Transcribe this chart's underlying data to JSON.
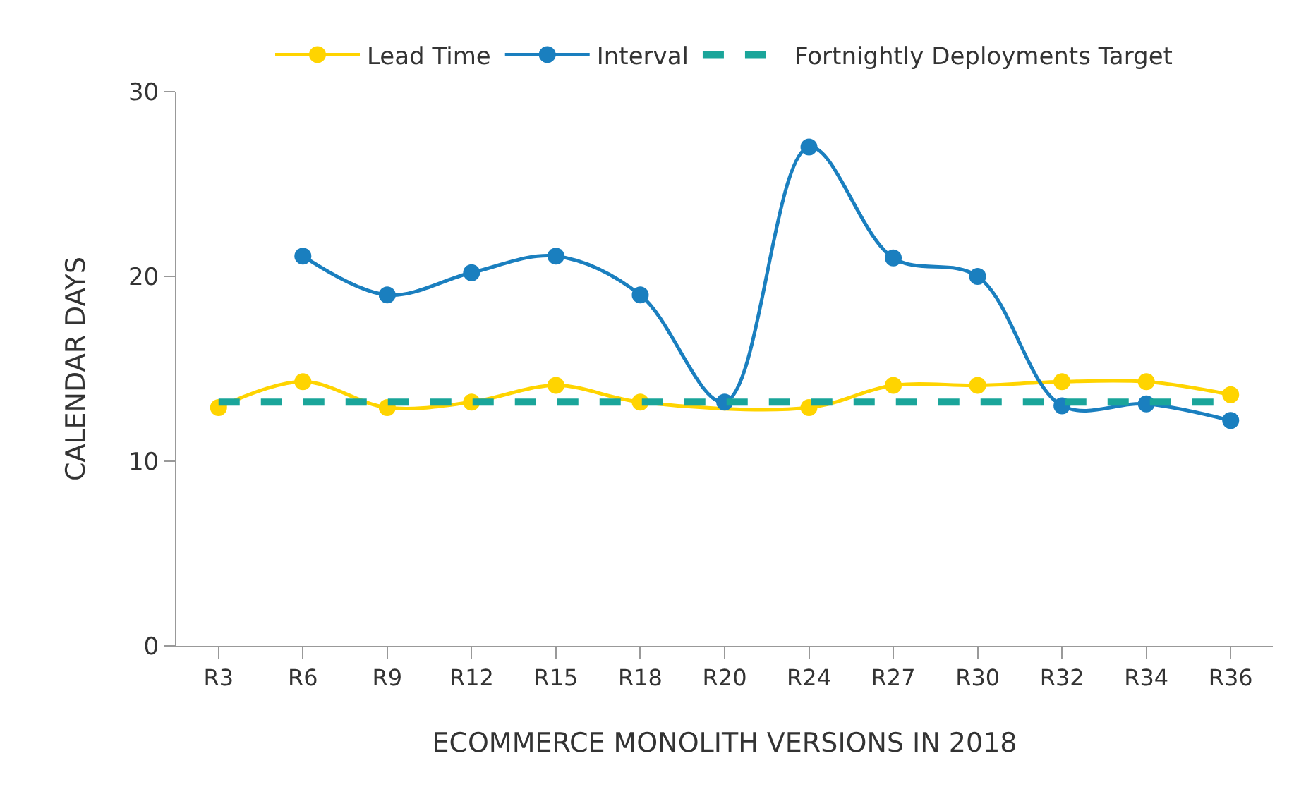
{
  "chart_data": {
    "type": "line",
    "xlabel": "ECOMMERCE MONOLITH VERSIONS IN 2018",
    "ylabel": "CALENDAR DAYS",
    "categories": [
      "R3",
      "R6",
      "R9",
      "R12",
      "R15",
      "R18",
      "R20",
      "R24",
      "R27",
      "R30",
      "R32",
      "R34",
      "R36"
    ],
    "series": [
      {
        "name": "Lead Time",
        "color": "#ffd400",
        "marker": "circle",
        "line_style": "solid",
        "values": [
          12.9,
          14.3,
          12.9,
          13.2,
          14.1,
          13.2,
          null,
          12.9,
          14.1,
          14.1,
          14.3,
          14.3,
          13.6
        ]
      },
      {
        "name": "Interval",
        "color": "#1a7fbf",
        "marker": "circle",
        "line_style": "solid",
        "values": [
          null,
          21.1,
          19,
          20.2,
          21.1,
          19,
          13.2,
          27,
          21,
          20,
          13,
          13.1,
          12.2
        ]
      },
      {
        "name": "Fortnightly Deployments Target",
        "color": "#1aa59a",
        "marker": "none",
        "line_style": "dashed",
        "values": [
          13.2,
          13.2,
          13.2,
          13.2,
          13.2,
          13.2,
          13.2,
          13.2,
          13.2,
          13.2,
          13.2,
          13.2,
          13.2
        ]
      }
    ],
    "ylim": [
      0,
      30
    ],
    "yticks": [
      0,
      10,
      20,
      30
    ],
    "grid": false,
    "legend": "top"
  }
}
